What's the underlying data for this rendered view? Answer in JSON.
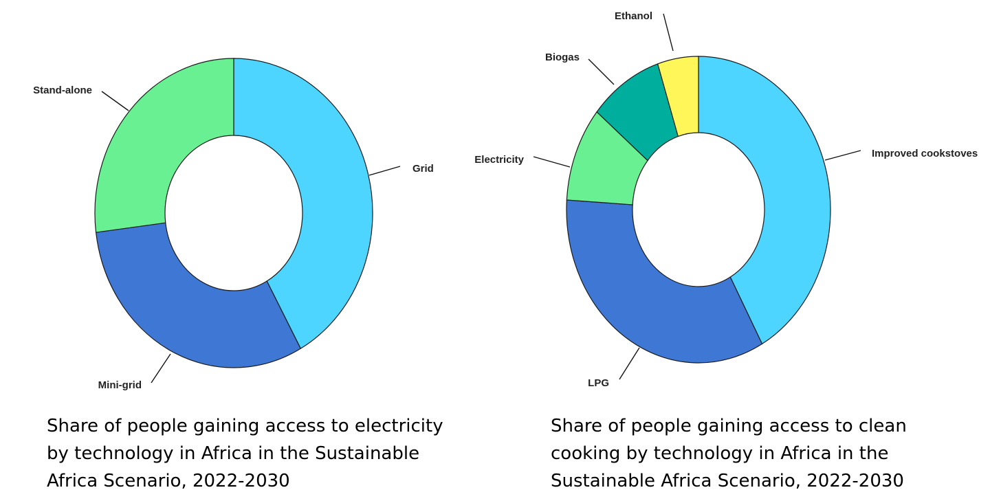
{
  "chart_data": [
    {
      "type": "pie",
      "variant": "donut",
      "categories": [
        "Grid",
        "Mini-grid",
        "Stand-alone"
      ],
      "values": [
        42,
        31,
        27
      ],
      "colors": [
        "#4DD5FF",
        "#3F78D4",
        "#69F093"
      ],
      "caption": [
        "Share of people gaining access to electricity",
        "by technology in Africa in the Sustainable",
        "Africa Scenario, 2022-2030"
      ]
    },
    {
      "type": "pie",
      "variant": "donut",
      "categories": [
        "Improved cookstoves",
        "LPG",
        "Electricity",
        "Biogas",
        "Ethanol"
      ],
      "values": [
        42,
        34,
        10,
        9,
        5
      ],
      "colors": [
        "#4DD5FF",
        "#3F78D4",
        "#69F093",
        "#00AE9E",
        "#FFF65A"
      ],
      "caption": [
        "Share of people gaining access to clean",
        "cooking by technology in Africa in the",
        "Sustainable Africa Scenario, 2022-2030"
      ]
    }
  ]
}
